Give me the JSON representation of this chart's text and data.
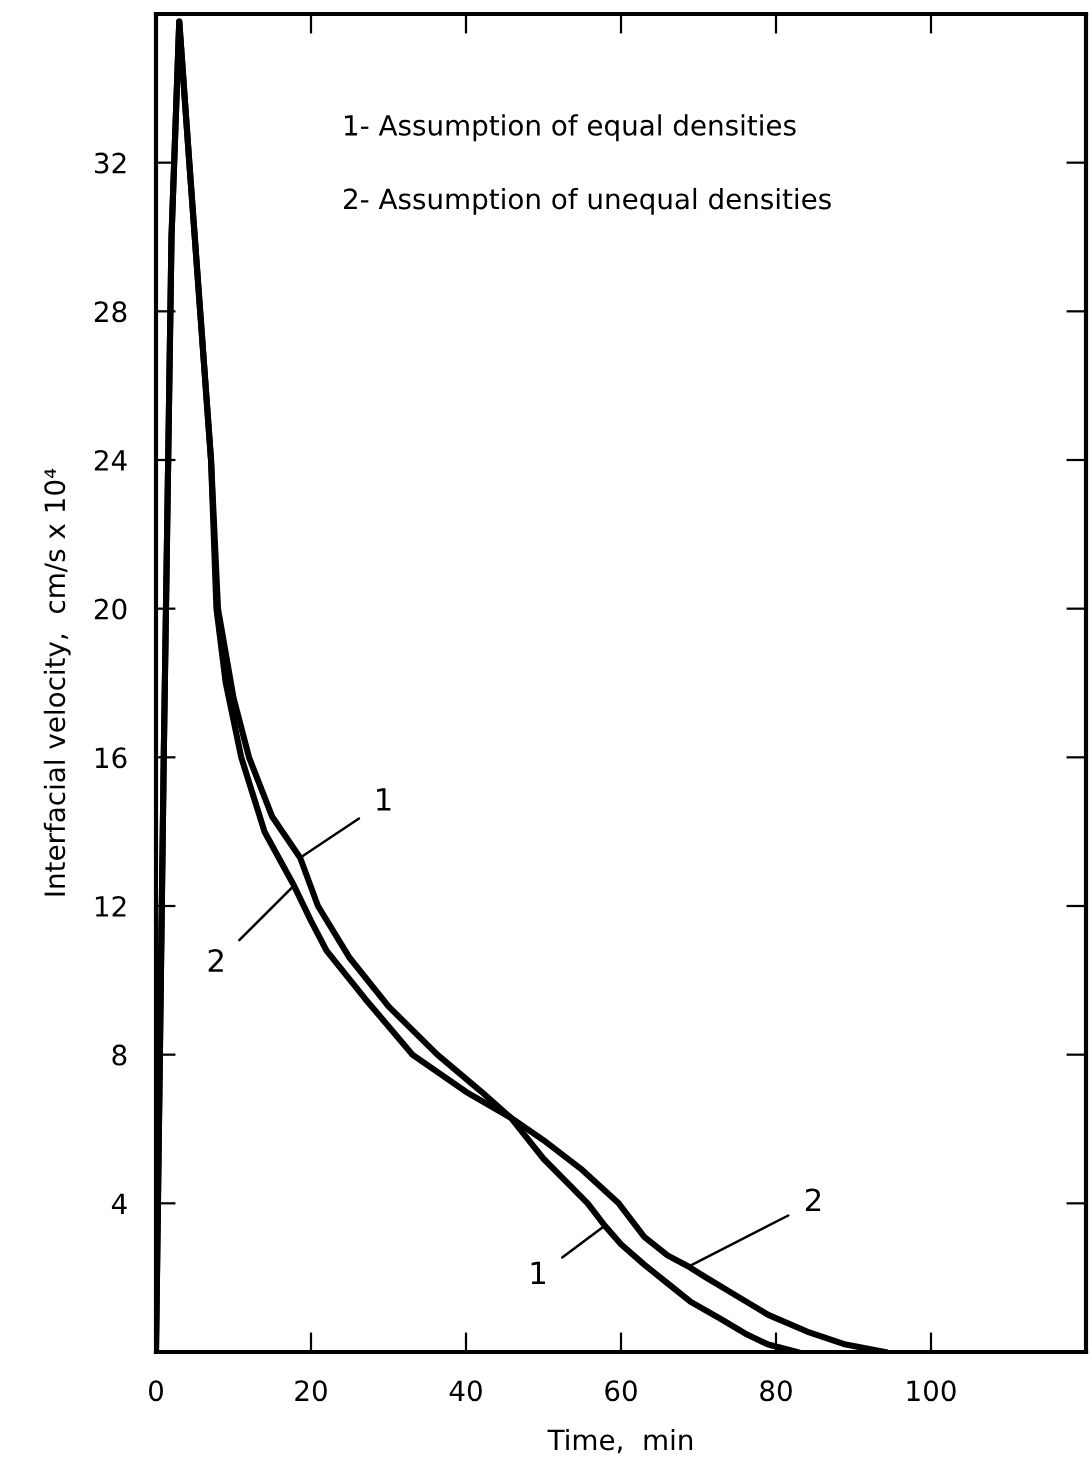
{
  "chart_data": {
    "type": "line",
    "xlabel": "Time,  min",
    "ylabel": "Interfacial velocity,  cm/s x 10⁴",
    "xlim": [
      0,
      120
    ],
    "ylim": [
      0,
      36
    ],
    "xticks": [
      0,
      20,
      40,
      60,
      80,
      100
    ],
    "yticks": [
      {
        "value": 0,
        "label": null
      },
      4,
      8,
      12,
      16,
      20,
      24,
      28,
      32
    ],
    "grid": false,
    "marker": "none",
    "line_style": "solid",
    "series": [
      {
        "color": "#000000",
        "x": [
          0,
          1,
          2,
          3,
          4.3,
          5.7,
          7.1,
          8,
          10,
          12,
          15,
          18.6,
          20.9,
          25,
          30,
          36.3,
          42,
          45.8,
          50,
          55.7,
          57.9,
          60,
          63,
          66,
          69,
          72.8,
          76,
          79,
          82.7
        ],
        "values": [
          0,
          16,
          30,
          35.8,
          32,
          28,
          24,
          20,
          17.6,
          16,
          14.4,
          13.3,
          12,
          10.6,
          9.3,
          8,
          7,
          6.3,
          5.2,
          4,
          3.4,
          2.9,
          2.35,
          1.85,
          1.35,
          0.9,
          0.5,
          0.2,
          0
        ]
      },
      {
        "color": "#000000",
        "x": [
          0,
          1,
          2,
          3,
          4.3,
          5.7,
          7.1,
          7.8,
          9,
          11,
          14,
          17.8,
          20,
          22,
          27,
          33.1,
          40,
          45.8,
          50,
          55,
          59.7,
          63,
          66,
          68.7,
          71,
          75,
          79,
          84,
          89,
          94
        ],
        "values": [
          0,
          16,
          30,
          35.8,
          32,
          28,
          24,
          20,
          18,
          16,
          14,
          12.55,
          11.6,
          10.8,
          9.5,
          8,
          7,
          6.3,
          5.7,
          4.9,
          4,
          3.1,
          2.6,
          2.3,
          2,
          1.5,
          1,
          0.55,
          0.2,
          0
        ]
      }
    ],
    "annotations": [
      "1- Assumption of equal densities",
      "2- Assumption of unequal densities",
      {
        "text": "1",
        "x": 18.6,
        "y": 13.3
      },
      {
        "text": "2",
        "x": 17.8,
        "y": 12.55
      },
      {
        "text": "1",
        "x": 57.9,
        "y": 3.4
      },
      {
        "text": "2",
        "x": 68.7,
        "y": 2.3
      }
    ]
  }
}
